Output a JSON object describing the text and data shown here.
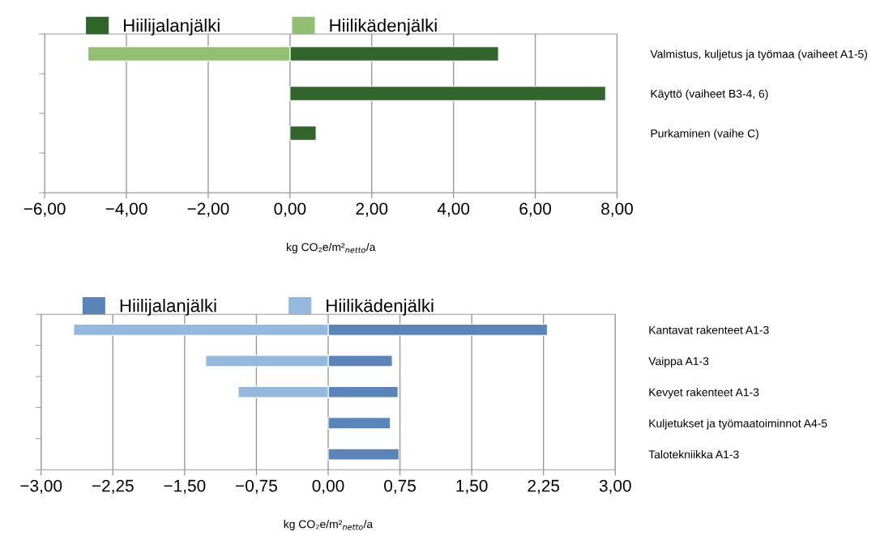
{
  "chart_data": [
    {
      "type": "bar",
      "orientation": "horizontal",
      "stacked": true,
      "categories": [
        "Valmistus, kuljetus ja työmaa (vaiheet A1-5)",
        "Käyttö (vaiheet B3-4, 6)",
        "Purkaminen (vaihe C)",
        null
      ],
      "series": [
        {
          "name": "Hiilijalanjälki",
          "color": "#31652c",
          "values": [
            5.1,
            7.72,
            0.64,
            null
          ]
        },
        {
          "name": "Hiilikädenjälki",
          "color": "#93bf72",
          "values": [
            -4.94,
            null,
            null,
            null
          ]
        }
      ],
      "xlim": [
        -6,
        8
      ],
      "xticks": [
        {
          "value": -6,
          "label": "−6,00"
        },
        {
          "value": -4,
          "label": "−4,00"
        },
        {
          "value": -2,
          "label": "−2,00"
        },
        {
          "value": 0,
          "label": "0,00"
        },
        {
          "value": 2,
          "label": "2,00"
        },
        {
          "value": 4,
          "label": "4,00"
        },
        {
          "value": 6,
          "label": "6,00"
        },
        {
          "value": 8,
          "label": "8,00"
        }
      ],
      "xlabel": "kg CO₂e/m²$_{netto}$/a",
      "grid": "x",
      "legend": "top"
    },
    {
      "type": "bar",
      "orientation": "horizontal",
      "stacked": true,
      "categories": [
        "Kantavat rakenteet A1-3",
        "Vaippa A1-3",
        "Kevyet rakenteet A1-3",
        "Kuljetukset ja työmaatoiminnot A4-5",
        "Talotekniikka A1-3"
      ],
      "series": [
        {
          "name": "Hiilijalanjälki",
          "color": "#5b84b9",
          "values": [
            2.29,
            0.67,
            0.73,
            0.65,
            0.74
          ]
        },
        {
          "name": "Hiilikädenjälki",
          "color": "#95b9dd",
          "values": [
            -2.66,
            -1.28,
            -0.94,
            null,
            null
          ]
        }
      ],
      "xlim": [
        -3,
        3
      ],
      "xticks": [
        {
          "value": -3,
          "label": "−3,00"
        },
        {
          "value": -2.25,
          "label": "−2,25"
        },
        {
          "value": -1.5,
          "label": "−1,50"
        },
        {
          "value": -0.75,
          "label": "−0,75"
        },
        {
          "value": 0,
          "label": "0,00"
        },
        {
          "value": 0.75,
          "label": "0,75"
        },
        {
          "value": 1.5,
          "label": "1,50"
        },
        {
          "value": 2.25,
          "label": "2,25"
        },
        {
          "value": 3,
          "label": "3,00"
        }
      ],
      "xlabel": "kg CO₂e/m²$_{netto}$/a",
      "grid": "x",
      "legend": "top"
    }
  ]
}
